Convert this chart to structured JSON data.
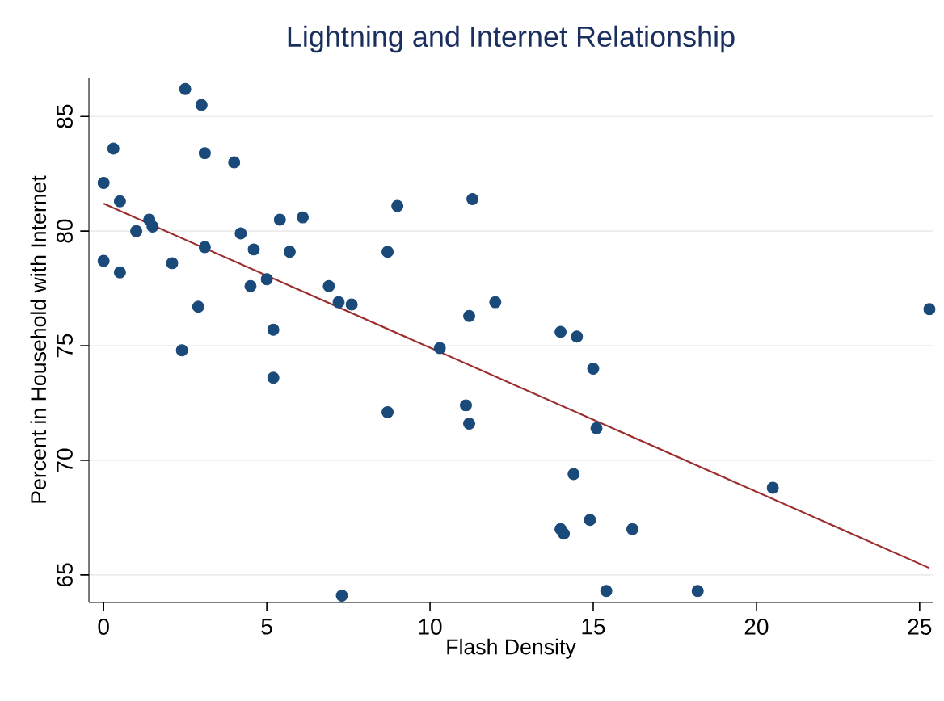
{
  "chart_data": {
    "type": "scatter",
    "title": "Lightning and Internet Relationship",
    "xlabel": "Flash Density",
    "ylabel": "Percent in Household with Internet",
    "xlim": [
      -0.45,
      25.4
    ],
    "ylim": [
      63.8,
      86.7
    ],
    "xticks": [
      0,
      5,
      10,
      15,
      20,
      25
    ],
    "yticks": [
      65,
      70,
      75,
      80,
      85
    ],
    "grid": "y",
    "series": [
      {
        "marker": "circle",
        "color": "#1a4a7a",
        "x": [
          0,
          0.3,
          0.5,
          0,
          0.5,
          1,
          1.4,
          1.5,
          2.1,
          2.5,
          2.9,
          3,
          3.1,
          3.1,
          2.4,
          4,
          4.2,
          4.5,
          4.6,
          5,
          5.2,
          5.2,
          5.4,
          5.7,
          6.1,
          6.9,
          7.2,
          7.6,
          7.3,
          8.7,
          8.7,
          9,
          10.3,
          11.1,
          11.2,
          11.3,
          11.2,
          12,
          14,
          14.5,
          15,
          15.1,
          14.4,
          14,
          14.1,
          14.9,
          16.2,
          15.4,
          18.2,
          20.5,
          25.3
        ],
        "values": [
          82.1,
          83.6,
          81.3,
          78.7,
          78.2,
          80,
          80.5,
          80.2,
          78.6,
          86.2,
          76.7,
          85.5,
          83.4,
          79.3,
          74.8,
          83,
          79.9,
          77.6,
          79.2,
          77.9,
          75.7,
          73.6,
          80.5,
          79.1,
          80.6,
          77.6,
          76.9,
          76.8,
          64.1,
          79.1,
          72.1,
          81.1,
          74.9,
          72.4,
          71.6,
          81.4,
          76.3,
          76.9,
          75.6,
          75.4,
          74,
          71.4,
          69.4,
          67,
          66.8,
          67.4,
          67,
          64.3,
          64.3,
          68.8,
          76.6
        ]
      },
      {
        "type": "line",
        "marker": "none",
        "color": "#9b2d2d",
        "x": [
          0,
          25.3
        ],
        "values": [
          81.2,
          65.3
        ]
      }
    ]
  }
}
